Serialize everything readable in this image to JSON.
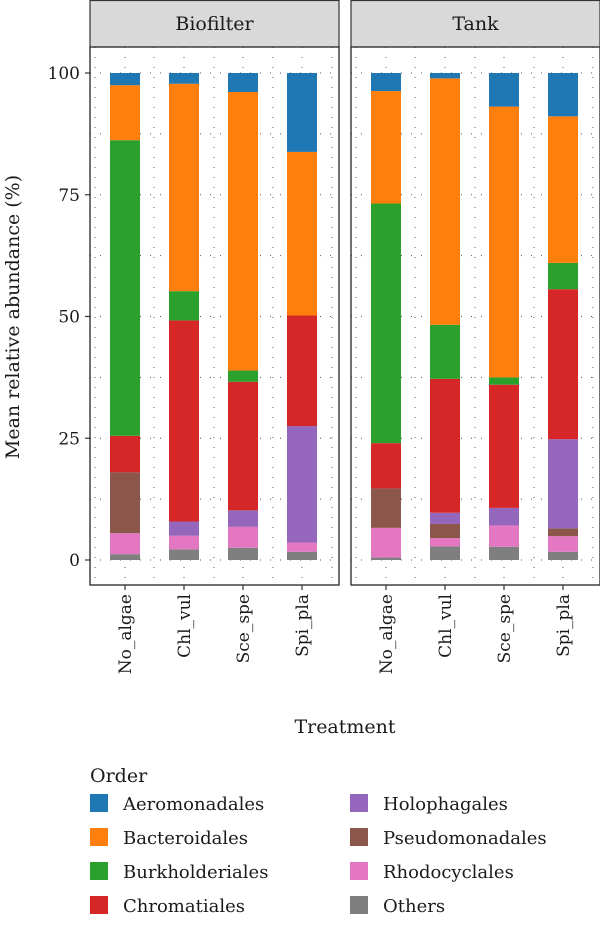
{
  "chart_data": {
    "type": "bar",
    "stacked": true,
    "ylabel": "Mean relative abundance (%)",
    "xlabel": "Treatment",
    "ylim": [
      0,
      100
    ],
    "yticks": [
      "0",
      "25",
      "50",
      "75",
      "100"
    ],
    "categories": [
      "No_algae",
      "Chl_vul",
      "Sce_spe",
      "Spi_pla"
    ],
    "grid": "dotted",
    "legend_title": "Order",
    "legend_position": "bottom",
    "series_order": [
      "Others",
      "Rhodocyclales",
      "Pseudomonadales",
      "Holophagales",
      "Chromatiales",
      "Burkholderiales",
      "Bacteroidales",
      "Aeromonadales"
    ],
    "legend": [
      {
        "name": "Aeromonadales",
        "color": "#1f77b4"
      },
      {
        "name": "Bacteroidales",
        "color": "#ff7f0e"
      },
      {
        "name": "Burkholderiales",
        "color": "#2ca02c"
      },
      {
        "name": "Chromatiales",
        "color": "#d62728"
      },
      {
        "name": "Holophagales",
        "color": "#9467bd"
      },
      {
        "name": "Pseudomonadales",
        "color": "#8c564b"
      },
      {
        "name": "Rhodocyclales",
        "color": "#e377c2"
      },
      {
        "name": "Others",
        "color": "#7f7f7f"
      }
    ],
    "panels": [
      {
        "title": "Biofilter",
        "series": [
          {
            "name": "Others",
            "values": [
              1.2,
              2.2,
              2.5,
              1.7
            ]
          },
          {
            "name": "Rhodocyclales",
            "values": [
              4.3,
              2.8,
              4.3,
              1.9
            ]
          },
          {
            "name": "Pseudomonadales",
            "values": [
              12.5,
              0.0,
              0.0,
              0.0
            ]
          },
          {
            "name": "Holophagales",
            "values": [
              0.0,
              2.9,
              3.4,
              23.9
            ]
          },
          {
            "name": "Chromatiales",
            "values": [
              7.5,
              41.3,
              26.4,
              22.7
            ]
          },
          {
            "name": "Burkholderiales",
            "values": [
              60.7,
              6.0,
              2.3,
              0.0
            ]
          },
          {
            "name": "Bacteroidales",
            "values": [
              11.3,
              42.6,
              57.2,
              33.6
            ]
          },
          {
            "name": "Aeromonadales",
            "values": [
              2.5,
              2.2,
              3.9,
              16.2
            ]
          }
        ]
      },
      {
        "title": "Tank",
        "series": [
          {
            "name": "Others",
            "values": [
              0.5,
              2.8,
              2.7,
              1.7
            ]
          },
          {
            "name": "Rhodocyclales",
            "values": [
              6.1,
              1.7,
              4.4,
              3.2
            ]
          },
          {
            "name": "Pseudomonadales",
            "values": [
              8.1,
              2.9,
              0.0,
              1.6
            ]
          },
          {
            "name": "Holophagales",
            "values": [
              0.0,
              2.3,
              3.6,
              18.3
            ]
          },
          {
            "name": "Chromatiales",
            "values": [
              9.3,
              27.5,
              25.3,
              30.8
            ]
          },
          {
            "name": "Burkholderiales",
            "values": [
              49.2,
              11.1,
              1.5,
              5.4
            ]
          },
          {
            "name": "Bacteroidales",
            "values": [
              23.1,
              50.6,
              55.6,
              30.1
            ]
          },
          {
            "name": "Aeromonadales",
            "values": [
              3.7,
              1.1,
              6.9,
              8.9
            ]
          }
        ]
      }
    ]
  }
}
